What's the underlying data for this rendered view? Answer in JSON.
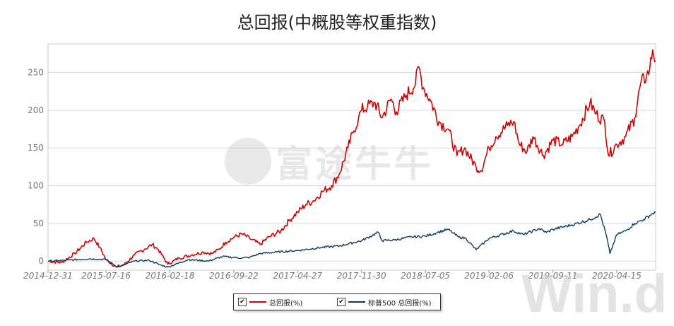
{
  "title": "总回报(中概股等权重指数)",
  "legend": {
    "items": [
      {
        "label": "总回报(%)",
        "color": "#d40000",
        "checked": "✔"
      },
      {
        "label": "标普500 总回报(%)",
        "color": "#0c3a5c",
        "checked": "✔"
      }
    ]
  },
  "watermarks": {
    "futu": "富途牛牛",
    "wind": "Win.d"
  },
  "chart_data": {
    "type": "line",
    "title": "总回报(中概股等权重指数)",
    "xlabel": "",
    "ylabel": "",
    "x_ticks": [
      "2014-12-31",
      "2015-07-16",
      "2016-02-18",
      "2016-09-22",
      "2017-04-27",
      "2017-11-30",
      "2018-07-05",
      "2019-02-06",
      "2019-09-11",
      "2020-04-15"
    ],
    "y_ticks": [
      0,
      50,
      100,
      150,
      200,
      250
    ],
    "ylim": [
      -12,
      288
    ],
    "grid": true,
    "legend_position": "bottom-center",
    "series": [
      {
        "name": "总回报(%)",
        "color": "#d40000",
        "points": [
          [
            "2014-12-31",
            0
          ],
          [
            "2015-02-15",
            -2
          ],
          [
            "2015-04-01",
            10
          ],
          [
            "2015-05-10",
            25
          ],
          [
            "2015-06-05",
            30
          ],
          [
            "2015-06-25",
            18
          ],
          [
            "2015-07-16",
            2
          ],
          [
            "2015-08-20",
            -8
          ],
          [
            "2015-09-15",
            -5
          ],
          [
            "2015-10-20",
            8
          ],
          [
            "2015-11-25",
            16
          ],
          [
            "2015-12-20",
            22
          ],
          [
            "2016-01-10",
            15
          ],
          [
            "2016-02-11",
            -4
          ],
          [
            "2016-03-20",
            4
          ],
          [
            "2016-05-01",
            8
          ],
          [
            "2016-06-10",
            12
          ],
          [
            "2016-07-10",
            10
          ],
          [
            "2016-08-05",
            16
          ],
          [
            "2016-08-25",
            25
          ],
          [
            "2016-09-25",
            32
          ],
          [
            "2016-10-20",
            36
          ],
          [
            "2016-11-15",
            30
          ],
          [
            "2016-12-20",
            22
          ],
          [
            "2017-01-20",
            32
          ],
          [
            "2017-03-01",
            40
          ],
          [
            "2017-04-01",
            55
          ],
          [
            "2017-04-27",
            65
          ],
          [
            "2017-05-25",
            75
          ],
          [
            "2017-06-20",
            80
          ],
          [
            "2017-07-20",
            92
          ],
          [
            "2017-08-20",
            100
          ],
          [
            "2017-09-15",
            115
          ],
          [
            "2017-10-15",
            150
          ],
          [
            "2017-11-01",
            170
          ],
          [
            "2017-11-20",
            190
          ],
          [
            "2017-11-30",
            200
          ],
          [
            "2017-12-20",
            205
          ],
          [
            "2018-01-15",
            210
          ],
          [
            "2018-02-08",
            190
          ],
          [
            "2018-03-10",
            215
          ],
          [
            "2018-03-28",
            198
          ],
          [
            "2018-05-01",
            220
          ],
          [
            "2018-06-01",
            235
          ],
          [
            "2018-06-12",
            258
          ],
          [
            "2018-06-28",
            230
          ],
          [
            "2018-07-20",
            215
          ],
          [
            "2018-08-20",
            185
          ],
          [
            "2018-09-20",
            175
          ],
          [
            "2018-10-20",
            140
          ],
          [
            "2018-11-15",
            150
          ],
          [
            "2018-12-24",
            125
          ],
          [
            "2019-01-10",
            120
          ],
          [
            "2019-02-06",
            150
          ],
          [
            "2019-03-01",
            165
          ],
          [
            "2019-04-10",
            180
          ],
          [
            "2019-05-01",
            185
          ],
          [
            "2019-05-20",
            155
          ],
          [
            "2019-06-15",
            145
          ],
          [
            "2019-07-05",
            165
          ],
          [
            "2019-08-10",
            140
          ],
          [
            "2019-09-11",
            160
          ],
          [
            "2019-10-15",
            155
          ],
          [
            "2019-11-15",
            165
          ],
          [
            "2019-12-10",
            180
          ],
          [
            "2020-01-15",
            210
          ],
          [
            "2020-02-05",
            195
          ],
          [
            "2020-03-05",
            185
          ],
          [
            "2020-03-18",
            140
          ],
          [
            "2020-04-15",
            155
          ],
          [
            "2020-05-15",
            165
          ],
          [
            "2020-06-15",
            190
          ],
          [
            "2020-07-05",
            235
          ],
          [
            "2020-07-25",
            245
          ],
          [
            "2020-08-05",
            255
          ],
          [
            "2020-08-15",
            280
          ],
          [
            "2020-08-25",
            265
          ]
        ]
      },
      {
        "name": "标普500 总回报(%)",
        "color": "#0c3a5c",
        "points": [
          [
            "2014-12-31",
            0
          ],
          [
            "2015-03-01",
            1
          ],
          [
            "2015-05-20",
            3
          ],
          [
            "2015-07-16",
            2
          ],
          [
            "2015-08-25",
            -8
          ],
          [
            "2015-10-20",
            0
          ],
          [
            "2015-12-10",
            1
          ],
          [
            "2016-01-15",
            -5
          ],
          [
            "2016-02-11",
            -8
          ],
          [
            "2016-04-20",
            2
          ],
          [
            "2016-06-27",
            0
          ],
          [
            "2016-08-15",
            6
          ],
          [
            "2016-10-20",
            4
          ],
          [
            "2016-11-15",
            5
          ],
          [
            "2016-12-20",
            10
          ],
          [
            "2017-02-15",
            12
          ],
          [
            "2017-04-27",
            14
          ],
          [
            "2017-07-15",
            18
          ],
          [
            "2017-09-15",
            20
          ],
          [
            "2017-11-30",
            27
          ],
          [
            "2018-01-26",
            38
          ],
          [
            "2018-02-08",
            27
          ],
          [
            "2018-03-22",
            28
          ],
          [
            "2018-05-20",
            32
          ],
          [
            "2018-07-05",
            33
          ],
          [
            "2018-08-15",
            38
          ],
          [
            "2018-09-20",
            42
          ],
          [
            "2018-10-25",
            32
          ],
          [
            "2018-11-20",
            30
          ],
          [
            "2018-12-24",
            15
          ],
          [
            "2019-02-06",
            30
          ],
          [
            "2019-04-30",
            40
          ],
          [
            "2019-06-03",
            35
          ],
          [
            "2019-07-26",
            43
          ],
          [
            "2019-08-20",
            38
          ],
          [
            "2019-09-11",
            42
          ],
          [
            "2019-11-15",
            48
          ],
          [
            "2020-01-15",
            55
          ],
          [
            "2020-02-19",
            62
          ],
          [
            "2020-03-10",
            35
          ],
          [
            "2020-03-23",
            10
          ],
          [
            "2020-04-15",
            35
          ],
          [
            "2020-05-15",
            40
          ],
          [
            "2020-06-15",
            50
          ],
          [
            "2020-07-15",
            55
          ],
          [
            "2020-08-15",
            63
          ],
          [
            "2020-08-25",
            65
          ]
        ]
      }
    ]
  }
}
